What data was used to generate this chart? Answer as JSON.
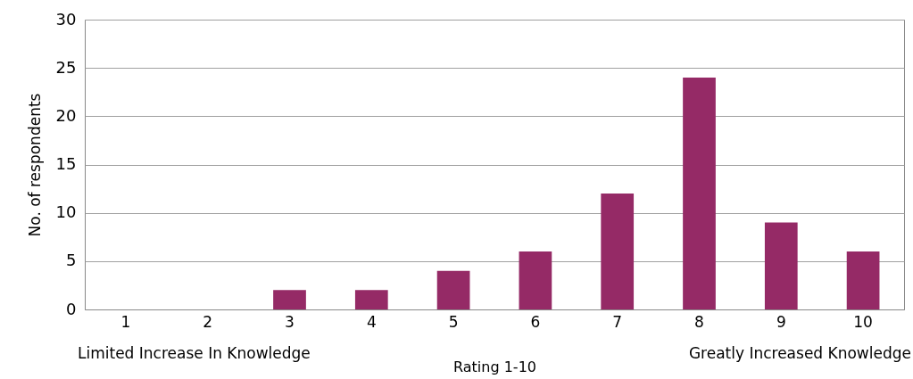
{
  "chart_data": {
    "type": "bar",
    "xlabel": "Rating 1-10",
    "ylabel": "No. of respondents",
    "categories": [
      "1",
      "2",
      "3",
      "4",
      "5",
      "6",
      "7",
      "8",
      "9",
      "10"
    ],
    "values": [
      0,
      0,
      2,
      2,
      4,
      6,
      12,
      24,
      9,
      6
    ],
    "color": "#952a66",
    "ylim": [
      0,
      30
    ],
    "yticks": [
      0,
      5,
      10,
      15,
      20,
      25,
      30
    ],
    "grid": "y",
    "annotations": [
      "Limited Increase In Knowledge",
      "Greatly Increased Knowledge"
    ]
  }
}
